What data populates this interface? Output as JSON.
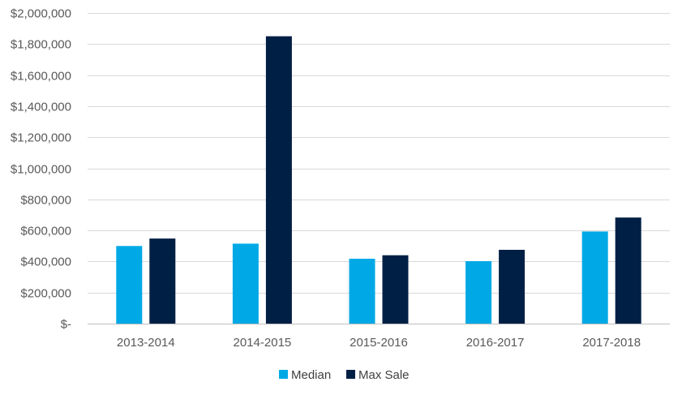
{
  "chart_data": {
    "type": "bar",
    "title": "",
    "xlabel": "",
    "ylabel": "",
    "categories": [
      "2013-2014",
      "2014-2015",
      "2015-2016",
      "2016-2017",
      "2017-2018"
    ],
    "series": [
      {
        "name": "Median",
        "color": "#00A9E6",
        "values": [
          500000,
          515000,
          418000,
          402000,
          593000
        ]
      },
      {
        "name": "Max Sale",
        "color": "#001F45",
        "values": [
          548000,
          1850000,
          440000,
          475000,
          683000
        ]
      }
    ],
    "ylim": [
      0,
      2000000
    ],
    "yticks": [
      0,
      200000,
      400000,
      600000,
      800000,
      1000000,
      1200000,
      1400000,
      1600000,
      1800000,
      2000000
    ],
    "ytick_labels": [
      "$-",
      "$200,000",
      "$400,000",
      "$600,000",
      "$800,000",
      "$1,000,000",
      "$1,200,000",
      "$1,400,000",
      "$1,600,000",
      "$1,800,000",
      "$2,000,000"
    ],
    "grid": true,
    "legend": "bottom-center"
  }
}
